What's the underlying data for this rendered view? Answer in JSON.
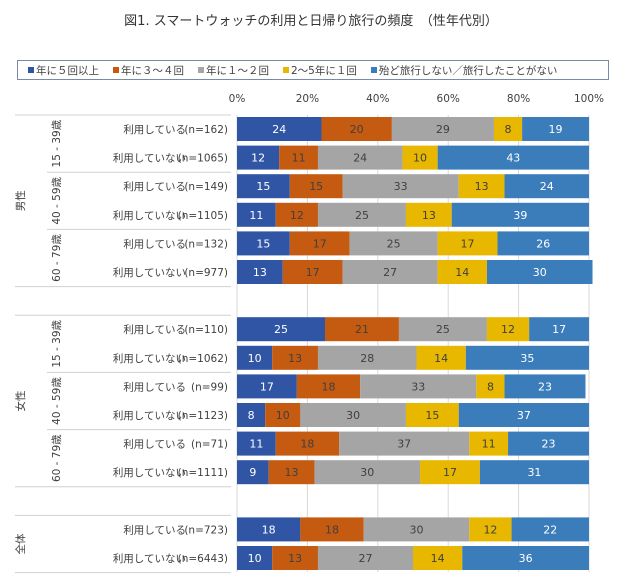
{
  "chart_data": {
    "type": "bar",
    "orientation": "horizontal-stacked-100",
    "title": "図1. スマートウォッチの利用と日帰り旅行の頻度　（性年代別）",
    "xlim": [
      0,
      100
    ],
    "x_ticks": [
      "0%",
      "20%",
      "40%",
      "60%",
      "80%",
      "100%"
    ],
    "grid": true,
    "legend_position": "top",
    "series": [
      {
        "name": "年に５回以上",
        "color": "#2F55A4"
      },
      {
        "name": "年に３～４回",
        "color": "#C55A11"
      },
      {
        "name": "年に１～２回",
        "color": "#A5A5A5"
      },
      {
        "name": "2～5年に１回",
        "color": "#E8B800"
      },
      {
        "name": "殆ど旅行しない／旅行したことがない",
        "color": "#3A7DBA"
      }
    ],
    "groups": [
      {
        "sex": "男性",
        "ages": [
          {
            "age": "15 - 39歳",
            "rows": [
              {
                "label": "利用している",
                "n": "(n=162)",
                "values": [
                  24,
                  20,
                  29,
                  8,
                  19
                ]
              },
              {
                "label": "利用していない",
                "n": "(n=1065)",
                "values": [
                  12,
                  11,
                  24,
                  10,
                  43
                ]
              }
            ]
          },
          {
            "age": "40 - 59歳",
            "rows": [
              {
                "label": "利用している",
                "n": "(n=149)",
                "values": [
                  15,
                  15,
                  33,
                  13,
                  24
                ]
              },
              {
                "label": "利用していない",
                "n": "(n=1105)",
                "values": [
                  11,
                  12,
                  25,
                  13,
                  39
                ]
              }
            ]
          },
          {
            "age": "60 - 79歳",
            "rows": [
              {
                "label": "利用している",
                "n": "(n=132)",
                "values": [
                  15,
                  17,
                  25,
                  17,
                  26
                ]
              },
              {
                "label": "利用していない",
                "n": "(n=977)",
                "values": [
                  13,
                  17,
                  27,
                  14,
                  30
                ]
              }
            ]
          }
        ]
      },
      {
        "sex": "女性",
        "ages": [
          {
            "age": "15 - 39歳",
            "rows": [
              {
                "label": "利用している",
                "n": "(n=110)",
                "values": [
                  25,
                  21,
                  25,
                  12,
                  17
                ]
              },
              {
                "label": "利用していない",
                "n": "(n=1062)",
                "values": [
                  10,
                  13,
                  28,
                  14,
                  35
                ]
              }
            ]
          },
          {
            "age": "40 - 59歳",
            "rows": [
              {
                "label": "利用している",
                "n": "(n=99)",
                "values": [
                  17,
                  18,
                  33,
                  8,
                  23
                ]
              },
              {
                "label": "利用していない",
                "n": "(n=1123)",
                "values": [
                  8,
                  10,
                  30,
                  15,
                  37
                ]
              }
            ]
          },
          {
            "age": "60 - 79歳",
            "rows": [
              {
                "label": "利用している",
                "n": "(n=71)",
                "values": [
                  11,
                  18,
                  37,
                  11,
                  23
                ]
              },
              {
                "label": "利用していない",
                "n": "(n=1111)",
                "values": [
                  9,
                  13,
                  30,
                  17,
                  31
                ]
              }
            ]
          }
        ]
      },
      {
        "sex": "全体",
        "ages": [
          {
            "age": "",
            "rows": [
              {
                "label": "利用している",
                "n": "(n=723)",
                "values": [
                  18,
                  18,
                  30,
                  12,
                  22
                ]
              },
              {
                "label": "利用していない",
                "n": "(n=6443)",
                "values": [
                  10,
                  13,
                  27,
                  14,
                  36
                ]
              }
            ]
          }
        ]
      }
    ]
  }
}
